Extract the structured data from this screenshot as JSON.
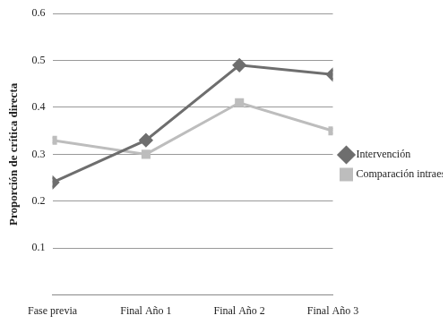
{
  "chart_data": {
    "type": "line",
    "categories": [
      "Fase previa",
      "Final Año 1",
      "Final Año 2",
      "Final Año 3"
    ],
    "series": [
      {
        "name": "Intervención",
        "color": "#6e6e6e",
        "marker": "diamond",
        "values": [
          0.24,
          0.33,
          0.49,
          0.47
        ]
      },
      {
        "name": "Comparación intraescolar",
        "color": "#bdbdbd",
        "marker": "square",
        "values": [
          0.33,
          0.3,
          0.41,
          0.35
        ]
      }
    ],
    "y_label": "Proporción de crítica directa",
    "ylim": [
      0,
      0.6
    ],
    "yticks": [
      0.1,
      0.2,
      0.3,
      0.4,
      0.5,
      0.6
    ],
    "grid": true,
    "legend": "right"
  }
}
